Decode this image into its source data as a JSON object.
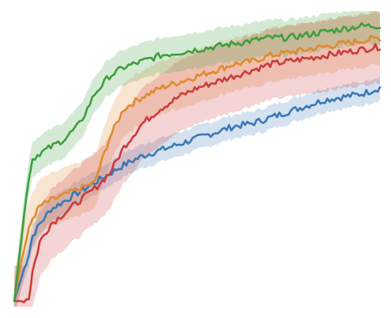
{
  "chart_data": {
    "type": "line",
    "title": "",
    "xlabel": "",
    "ylabel": "",
    "grid": false,
    "legend": "none",
    "xlim": [
      0,
      100
    ],
    "ylim": [
      0,
      100
    ],
    "x": [
      0,
      2,
      4,
      5,
      7,
      10,
      14,
      18,
      22,
      26,
      30,
      35,
      40,
      45,
      50,
      55,
      60,
      65,
      70,
      75,
      80,
      85,
      90,
      95,
      100
    ],
    "series": [
      {
        "color": "#3b78b4",
        "values": [
          2,
          10,
          18,
          24,
          28,
          33,
          36,
          39,
          42,
          45,
          48,
          51,
          53,
          55,
          57,
          59,
          61,
          62,
          64,
          66,
          68,
          70,
          71,
          72,
          74
        ],
        "band": 4
      },
      {
        "color": "#e08a2f",
        "values": [
          2,
          16,
          26,
          30,
          34,
          36,
          38,
          40,
          42,
          57,
          67,
          71,
          74,
          76,
          78,
          80,
          82,
          83,
          85,
          86,
          87,
          88,
          89,
          90,
          91
        ],
        "band": 9
      },
      {
        "color": "#cc3c3c",
        "values": [
          2,
          2,
          3,
          12,
          22,
          28,
          32,
          36,
          40,
          45,
          54,
          62,
          67,
          71,
          74,
          76,
          78,
          80,
          82,
          83,
          84,
          85,
          86,
          87,
          88
        ],
        "band": 12
      },
      {
        "color": "#3e9e3e",
        "values": [
          2,
          24,
          44,
          50,
          52,
          54,
          57,
          62,
          72,
          78,
          81,
          83,
          85,
          86,
          87,
          88,
          89,
          90,
          91,
          91,
          92,
          93,
          94,
          95,
          95
        ],
        "band": 6
      }
    ]
  }
}
